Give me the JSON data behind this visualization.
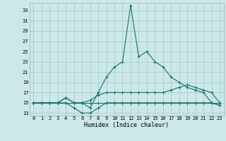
{
  "xlabel": "Humidex (Indice chaleur)",
  "background_color": "#cce8e8",
  "grid_color": "#aacccc",
  "line_color": "#1a7070",
  "xlim": [
    -0.5,
    23.5
  ],
  "ylim": [
    12.5,
    34.5
  ],
  "yticks": [
    13,
    15,
    17,
    19,
    21,
    23,
    25,
    27,
    29,
    31,
    33
  ],
  "xticks": [
    0,
    1,
    2,
    3,
    4,
    5,
    6,
    7,
    8,
    9,
    10,
    11,
    12,
    13,
    14,
    15,
    16,
    17,
    18,
    19,
    20,
    21,
    22,
    23
  ],
  "series": [
    {
      "x": [
        0,
        1,
        2,
        3,
        4,
        5,
        6,
        7,
        8,
        9,
        10,
        11,
        12,
        13,
        14,
        15,
        16,
        17,
        18,
        19,
        20,
        21,
        22,
        23
      ],
      "y": [
        15,
        15,
        15,
        15,
        15,
        15,
        15,
        15,
        15,
        15,
        15,
        15,
        15,
        15,
        15,
        15,
        15,
        15,
        15,
        15,
        15,
        15,
        15,
        15
      ]
    },
    {
      "x": [
        0,
        1,
        2,
        3,
        4,
        5,
        6,
        7,
        8,
        9,
        10,
        11,
        12,
        13,
        14,
        15,
        16,
        17,
        18,
        19,
        20,
        21,
        22,
        23
      ],
      "y": [
        15,
        15,
        15,
        15,
        15,
        14,
        13,
        13,
        14,
        15,
        15,
        15,
        15,
        15,
        15,
        15,
        15,
        15,
        15,
        15,
        15,
        15,
        15,
        14.5
      ]
    },
    {
      "x": [
        0,
        1,
        2,
        3,
        4,
        5,
        6,
        7,
        8,
        9,
        10,
        11,
        12,
        13,
        14,
        15,
        16,
        17,
        18,
        19,
        20,
        21,
        22,
        23
      ],
      "y": [
        15,
        15,
        15,
        15,
        16,
        15,
        15,
        15.5,
        16.5,
        17,
        17,
        17,
        17,
        17,
        17,
        17,
        17,
        17.5,
        18,
        18.5,
        18,
        17.5,
        17,
        15
      ]
    },
    {
      "x": [
        0,
        1,
        2,
        3,
        4,
        5,
        6,
        7,
        8,
        9,
        10,
        11,
        12,
        13,
        14,
        15,
        16,
        17,
        18,
        19,
        20,
        21,
        22,
        23
      ],
      "y": [
        15,
        15,
        15,
        15,
        16,
        15,
        15,
        14,
        17,
        20,
        22,
        23,
        34,
        24,
        25,
        23,
        22,
        20,
        19,
        18,
        17.5,
        17,
        15,
        14.5
      ]
    }
  ]
}
